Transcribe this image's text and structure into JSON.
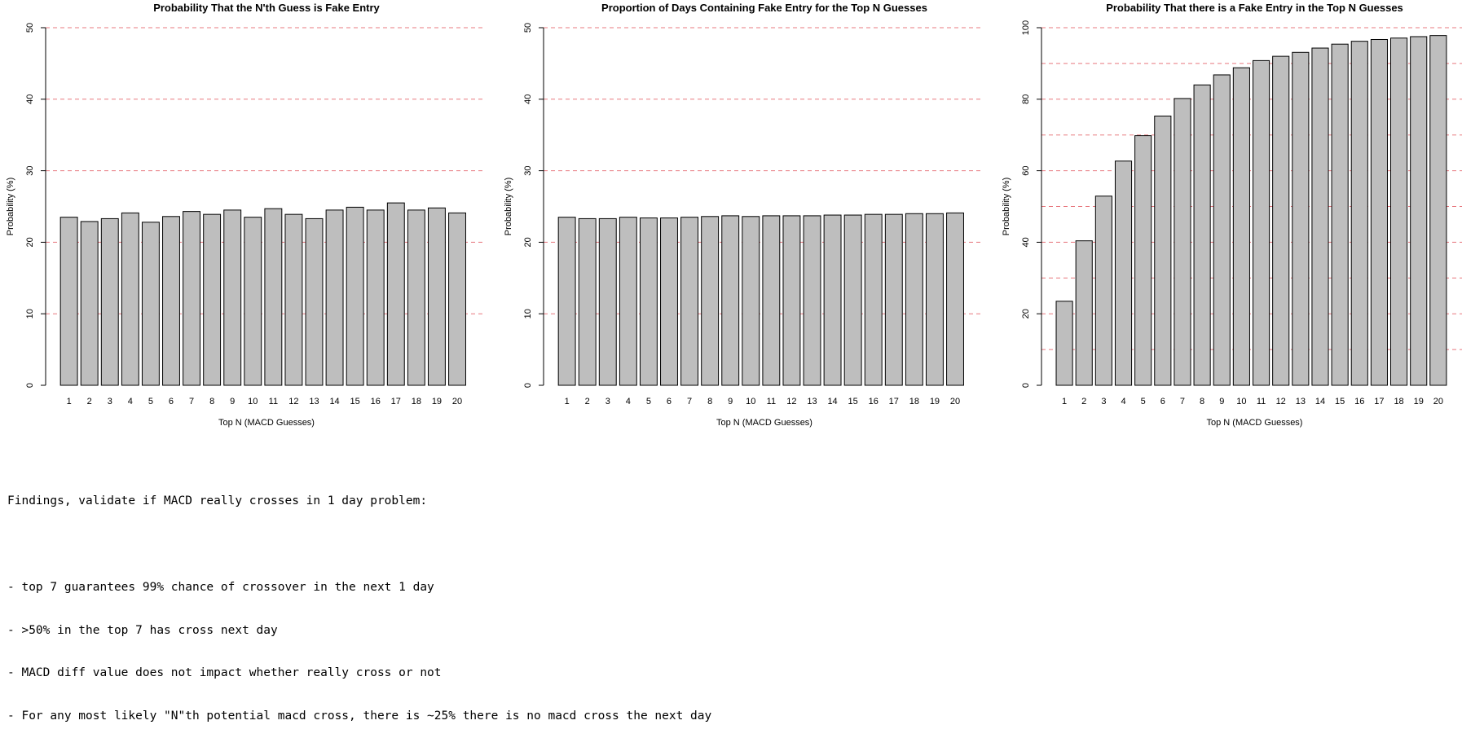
{
  "chart_data": [
    {
      "type": "bar",
      "title": "Probability That the N'th Guess is Fake Entry",
      "xlabel": "Top N (MACD Guesses)",
      "ylabel": "Probability (%)",
      "ylim": [
        0,
        50
      ],
      "yticks": [
        0,
        10,
        20,
        30,
        40,
        50
      ],
      "gridlines": [
        10,
        20,
        30,
        40,
        50
      ],
      "grid_color": "#e8787f",
      "bar_color": "#bebebe",
      "categories": [
        "1",
        "2",
        "3",
        "4",
        "5",
        "6",
        "7",
        "8",
        "9",
        "10",
        "11",
        "12",
        "13",
        "14",
        "15",
        "16",
        "17",
        "18",
        "19",
        "20"
      ],
      "values": [
        23.5,
        22.9,
        23.3,
        24.1,
        22.8,
        23.6,
        24.3,
        23.9,
        24.5,
        23.5,
        24.7,
        23.9,
        23.3,
        24.5,
        24.9,
        24.5,
        25.5,
        24.5,
        24.8,
        24.1
      ]
    },
    {
      "type": "bar",
      "title": "Proportion of Days Containing Fake Entry for the Top N Guesses",
      "xlabel": "Top N (MACD Guesses)",
      "ylabel": "Probability (%)",
      "ylim": [
        0,
        50
      ],
      "yticks": [
        0,
        10,
        20,
        30,
        40,
        50
      ],
      "gridlines": [
        10,
        20,
        30,
        40,
        50
      ],
      "grid_color": "#e8787f",
      "bar_color": "#bebebe",
      "categories": [
        "1",
        "2",
        "3",
        "4",
        "5",
        "6",
        "7",
        "8",
        "9",
        "10",
        "11",
        "12",
        "13",
        "14",
        "15",
        "16",
        "17",
        "18",
        "19",
        "20"
      ],
      "values": [
        23.5,
        23.3,
        23.3,
        23.5,
        23.4,
        23.4,
        23.5,
        23.6,
        23.7,
        23.6,
        23.7,
        23.7,
        23.7,
        23.8,
        23.8,
        23.9,
        23.9,
        24.0,
        24.0,
        24.1
      ]
    },
    {
      "type": "bar",
      "title": "Probability That there is a Fake Entry in the Top N Guesses",
      "xlabel": "Top N (MACD Guesses)",
      "ylabel": "Probability (%)",
      "ylim": [
        0,
        100
      ],
      "yticks": [
        0,
        20,
        40,
        60,
        80,
        100
      ],
      "gridlines": [
        10,
        20,
        30,
        40,
        50,
        60,
        70,
        80,
        90,
        100
      ],
      "grid_color": "#e8787f",
      "bar_color": "#bebebe",
      "categories": [
        "1",
        "2",
        "3",
        "4",
        "5",
        "6",
        "7",
        "8",
        "9",
        "10",
        "11",
        "12",
        "13",
        "14",
        "15",
        "16",
        "17",
        "18",
        "19",
        "20"
      ],
      "values": [
        23.5,
        40.4,
        52.9,
        62.7,
        69.8,
        75.3,
        80.2,
        84.0,
        86.8,
        88.8,
        90.8,
        92.0,
        93.1,
        94.3,
        95.4,
        96.2,
        96.7,
        97.1,
        97.5,
        97.8
      ]
    }
  ],
  "findings": {
    "heading": "Findings, validate if MACD really crosses in 1 day problem:",
    "items": [
      "- top 7 guarantees 99% chance of crossover in the next 1 day",
      "- >50% in the top 7 has cross next day",
      "- MACD diff value does not impact whether really cross or not",
      "- For any most likely \"N\"th potential macd cross, there is ~25% there is no macd cross the next day"
    ]
  }
}
